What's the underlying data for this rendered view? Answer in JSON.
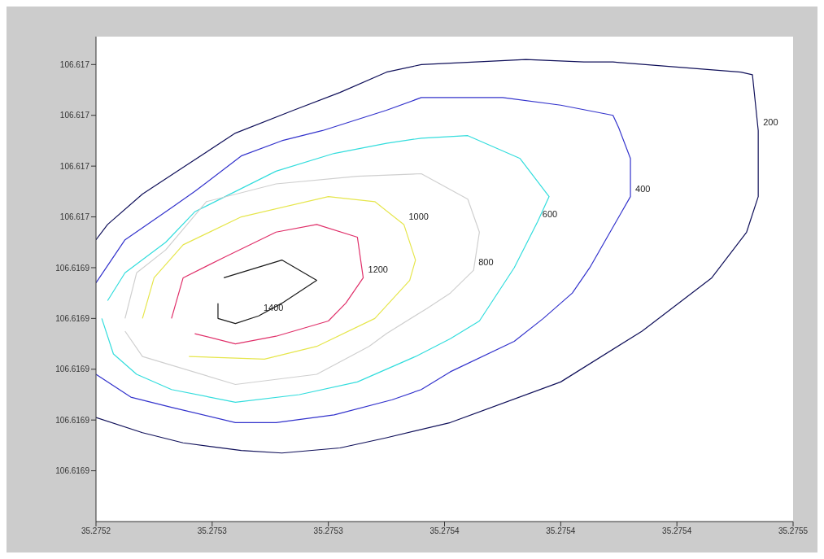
{
  "chart_data": {
    "type": "line",
    "xlim": [
      35.27524,
      35.27548
    ],
    "xticks": [
      {
        "value": 35.27524,
        "label": "35.2752"
      },
      {
        "value": 35.27528,
        "label": "35.2753"
      },
      {
        "value": 35.27532,
        "label": "35.2753"
      },
      {
        "value": 35.27536,
        "label": "35.2754"
      },
      {
        "value": 35.2754,
        "label": "35.2754"
      },
      {
        "value": 35.27544,
        "label": "35.2754"
      },
      {
        "value": 35.27548,
        "label": "35.2755"
      }
    ],
    "ylim": [
      106.61684,
      106.617031
    ],
    "yticks": [
      {
        "value": 106.61686,
        "label": "106.6169"
      },
      {
        "value": 106.61688,
        "label": "106.6169"
      },
      {
        "value": 106.6169,
        "label": "106.6169"
      },
      {
        "value": 106.61692,
        "label": "106.6169"
      },
      {
        "value": 106.61694,
        "label": "106.6169"
      },
      {
        "value": 106.61696,
        "label": "106.617"
      },
      {
        "value": 106.61698,
        "label": "106.617"
      },
      {
        "value": 106.617,
        "label": "106.617"
      },
      {
        "value": 106.61702,
        "label": "106.617"
      }
    ],
    "series": [
      {
        "name": "200",
        "color": "#10105a",
        "x": [
          35.27524,
          35.275244,
          35.275256,
          35.275272,
          35.275288,
          35.275308,
          35.275324,
          35.27534,
          35.275352,
          35.275388,
          35.275408,
          35.275418,
          35.275462,
          35.275466,
          35.275468,
          35.275468,
          35.275468,
          35.275464,
          35.275452,
          35.275428,
          35.2754,
          35.275362,
          35.27534,
          35.275324,
          35.275304,
          35.27529,
          35.27527,
          35.275256,
          35.27524
        ],
        "values": [
          106.616951,
          106.616957,
          106.616969,
          106.616981,
          106.616993,
          106.617002,
          106.617009,
          106.617017,
          106.61702,
          106.617022,
          106.617021,
          106.617021,
          106.617017,
          106.617016,
          106.616994,
          106.616977,
          106.616968,
          106.616954,
          106.616936,
          106.616915,
          106.616895,
          106.616879,
          106.616873,
          106.616869,
          106.616867,
          106.616868,
          106.616871,
          106.616875,
          106.616881
        ]
      },
      {
        "name": "400",
        "color": "#3333cc",
        "x": [
          35.27524,
          35.27525,
          35.275264,
          35.275274,
          35.27529,
          35.275304,
          35.275318,
          35.27534,
          35.275352,
          35.27538,
          35.2754,
          35.275418,
          35.27542,
          35.275424,
          35.275424,
          35.275416,
          35.27541,
          35.275404,
          35.275394,
          35.275384,
          35.275362,
          35.275352,
          35.275342,
          35.275322,
          35.275302,
          35.275288,
          35.275266,
          35.275252,
          35.27524
        ],
        "values": [
          106.616934,
          106.616951,
          106.616962,
          106.61697,
          106.616984,
          106.61699,
          106.616994,
          106.617002,
          106.617007,
          106.617007,
          106.617004,
          106.617,
          106.616995,
          106.616983,
          106.616968,
          106.616952,
          106.61694,
          106.61693,
          106.61692,
          106.616911,
          106.616899,
          106.616892,
          106.616888,
          106.616882,
          106.616879,
          106.616879,
          106.616885,
          106.616889,
          106.616898
        ]
      },
      {
        "name": "600",
        "color": "#33dddd",
        "x": [
          35.275244,
          35.27525,
          35.275264,
          35.275274,
          35.275302,
          35.275322,
          35.27534,
          35.275352,
          35.275368,
          35.275386,
          35.275396,
          35.275392,
          35.275384,
          35.275372,
          35.275362,
          35.27535,
          35.27533,
          35.27531,
          35.275288,
          35.275266,
          35.275254,
          35.275246,
          35.275242
        ],
        "values": [
          106.616927,
          106.616938,
          106.61695,
          106.616962,
          106.616978,
          106.616985,
          106.616989,
          106.616991,
          106.616992,
          106.616983,
          106.616968,
          106.616958,
          106.61694,
          106.616919,
          106.616912,
          106.616905,
          106.616895,
          106.61689,
          106.616887,
          106.616892,
          106.616898,
          106.616906,
          106.61692
        ]
      },
      {
        "name": "800",
        "color": "#cfcfcf",
        "x": [
          35.27525,
          35.275254,
          35.275264,
          35.275278,
          35.275302,
          35.27533,
          35.275352,
          35.275368,
          35.275372,
          35.27537,
          35.275362,
          35.275354,
          35.27534,
          35.275334,
          35.275316,
          35.275288,
          35.275256,
          35.27525
        ],
        "values": [
          106.61692,
          106.616938,
          106.616947,
          106.616966,
          106.616973,
          106.616976,
          106.616977,
          106.616967,
          106.616954,
          106.616939,
          106.61693,
          106.616924,
          106.616914,
          106.616909,
          106.616898,
          106.616894,
          106.616905,
          106.616915
        ]
      },
      {
        "name": "1000",
        "color": "#e6e64c",
        "x": [
          35.275256,
          35.27526,
          35.27527,
          35.27529,
          35.27532,
          35.275336,
          35.275346,
          35.27535,
          35.275348,
          35.275336,
          35.275316,
          35.275298,
          35.275272
        ],
        "values": [
          106.61692,
          106.616936,
          106.616949,
          106.61696,
          106.616968,
          106.616966,
          106.616957,
          106.616943,
          106.616935,
          106.61692,
          106.616909,
          106.616904,
          106.616905
        ]
      },
      {
        "name": "1200",
        "color": "#e0306a",
        "x": [
          35.275266,
          35.27527,
          35.275284,
          35.275302,
          35.275316,
          35.27533,
          35.275332,
          35.275326,
          35.27532,
          35.275302,
          35.275288,
          35.275274
        ],
        "values": [
          106.61692,
          106.616936,
          106.616944,
          106.616954,
          106.616957,
          106.616952,
          106.616936,
          106.616926,
          106.616919,
          106.616913,
          106.61691,
          106.616914
        ]
      },
      {
        "name": "1400",
        "color": "#1a1a1a",
        "x": [
          35.275284,
          35.275304,
          35.275316,
          35.275304,
          35.275296,
          35.275288,
          35.275282,
          35.275282
        ],
        "values": [
          106.616936,
          106.616943,
          106.616935,
          106.616926,
          106.616921,
          106.616918,
          106.61692,
          106.616926
        ]
      }
    ]
  }
}
